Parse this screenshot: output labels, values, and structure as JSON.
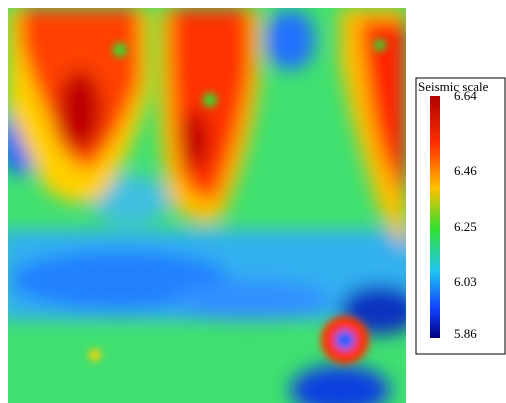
{
  "legend": {
    "title": "Seismic scale",
    "ticks": [
      6.64,
      6.46,
      6.25,
      6.03,
      5.86
    ]
  }
}
